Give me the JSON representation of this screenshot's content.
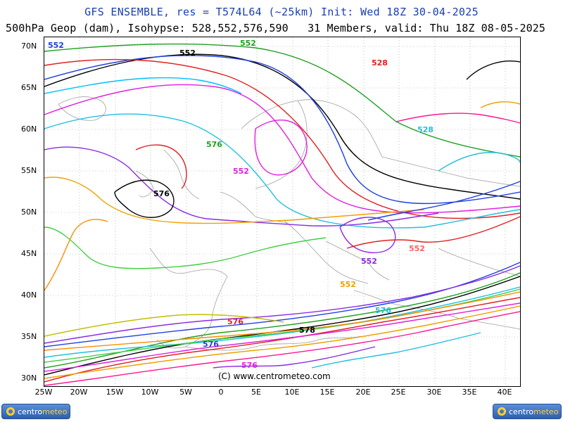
{
  "header": {
    "title_line1": "GFS ENSEMBLE, res = T574L64 (~25km)   Init: Wed 18Z 30-04-2025",
    "title_line2": "500hPa Geop (dam), Isohypse: 528,552,576,590   31 Members, valid: Thu 18Z 08-05-2025"
  },
  "axes": {
    "lat_labels": [
      "70N",
      "65N",
      "60N",
      "55N",
      "50N",
      "45N",
      "40N",
      "35N",
      "30N"
    ],
    "lon_labels": [
      "25W",
      "20W",
      "15W",
      "10W",
      "5W",
      "0",
      "5E",
      "10E",
      "15E",
      "20E",
      "25E",
      "30E",
      "35E",
      "40E"
    ]
  },
  "copyright": "(C) www.centrometeo.com",
  "logos": {
    "left_text": "centro",
    "left_accent": "meteo",
    "right_text": "centro",
    "right_accent": "meteo"
  },
  "member_colors": [
    "#000000",
    "#e02020",
    "#20a020",
    "#2040e0",
    "#e020e0",
    "#20c0e0",
    "#f0a000",
    "#8a2be2",
    "#ff6060",
    "#40d040",
    "#ff8c00",
    "#00bfff",
    "#c0c000",
    "#ff1493",
    "#008b8b"
  ],
  "contour_labels": [
    {
      "t": "552",
      "c": "#2040e0"
    },
    {
      "t": "552",
      "c": "#000000"
    },
    {
      "t": "552",
      "c": "#20a020"
    },
    {
      "t": "552",
      "c": "#e020e0"
    },
    {
      "t": "528",
      "c": "#e02020"
    },
    {
      "t": "528",
      "c": "#20c0e0"
    },
    {
      "t": "576",
      "c": "#000000"
    },
    {
      "t": "576",
      "c": "#20a020"
    },
    {
      "t": "552",
      "c": "#8a2be2"
    },
    {
      "t": "576",
      "c": "#e02020"
    },
    {
      "t": "576",
      "c": "#2040e0"
    },
    {
      "t": "578",
      "c": "#000000"
    },
    {
      "t": "576",
      "c": "#20c0e0"
    },
    {
      "t": "552",
      "c": "#f0a000"
    },
    {
      "t": "552",
      "c": "#ff6060"
    },
    {
      "t": "576",
      "c": "#e020e0"
    }
  ]
}
